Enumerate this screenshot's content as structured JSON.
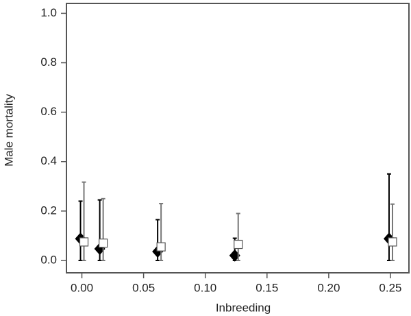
{
  "chart_data": {
    "type": "scatter",
    "x_label": "Inbreeding",
    "y_label": "Male mortality",
    "xlim": [
      -0.0125,
      0.265
    ],
    "ylim": [
      -0.05,
      1.04
    ],
    "xticks": [
      {
        "value": 0,
        "label": "0.00"
      },
      0.05,
      {
        "value": 0.1,
        "label": "0.10"
      },
      0.15,
      {
        "value": 0.2,
        "label": "0.20"
      },
      0.25
    ],
    "yticks": [
      {
        "value": 0,
        "label": "0.0"
      },
      0.2,
      0.4,
      0.6,
      0.8,
      {
        "value": 1,
        "label": "1.0"
      }
    ],
    "series": [
      {
        "marker": "diamond",
        "color": "#000000",
        "error_color": "#000000",
        "x": [
          0,
          0.0156,
          0.0625,
          0.125,
          0.25
        ],
        "values": [
          0.088,
          0.047,
          0.036,
          0.02,
          0.088
        ],
        "lower": [
          0,
          0,
          0,
          0,
          0
        ],
        "upper": [
          0.24,
          0.245,
          0.165,
          0.09,
          0.35
        ]
      },
      {
        "marker": "square",
        "color": "#ffffff",
        "error_color": "#777777",
        "x": [
          0,
          0.0156,
          0.0625,
          0.125,
          0.25
        ],
        "values": [
          0.075,
          0.07,
          0.055,
          0.065,
          0.075
        ],
        "lower": [
          0,
          0,
          0,
          0,
          0
        ],
        "upper": [
          0.317,
          0.25,
          0.23,
          0.19,
          0.228
        ]
      }
    ]
  }
}
